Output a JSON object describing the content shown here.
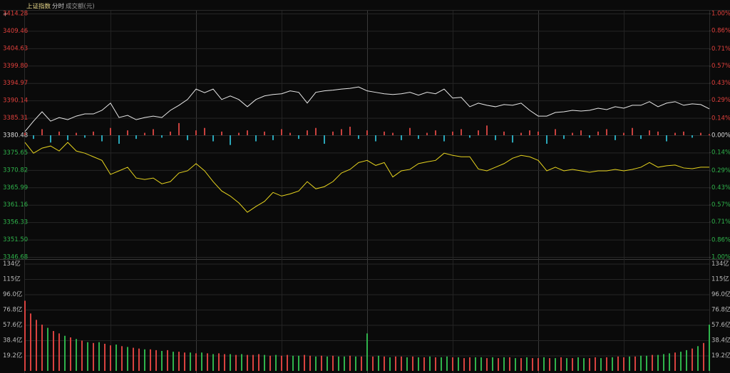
{
  "chart_data": [
    {
      "type": "line",
      "title": "上证指数",
      "subtitle": "分时",
      "up_color": "#e0403c",
      "down_color": "#2fb34b",
      "flat_color": "#dddddd",
      "ylim": [
        3346.68,
        3414.28
      ],
      "yticks": [
        3414.28,
        3409.46,
        3404.63,
        {
          "value": 3399.8,
          "label": "3399.80"
        },
        3394.97,
        3390.14,
        3385.31,
        3380.48,
        3375.65,
        3370.82,
        3365.99,
        3361.16,
        3356.33,
        {
          "value": 3351.5,
          "label": "3351.50"
        },
        3346.68
      ],
      "y2lim": [
        -1,
        1
      ],
      "y2ticks": [
        {
          "value": 1,
          "label": "1.00%"
        },
        {
          "value": 0.86,
          "label": "0.86%"
        },
        {
          "value": 0.71,
          "label": "0.71%"
        },
        {
          "value": 0.57,
          "label": "0.57%"
        },
        {
          "value": 0.43,
          "label": "0.43%"
        },
        {
          "value": 0.29,
          "label": "0.29%"
        },
        {
          "value": 0.14,
          "label": "0.14%"
        },
        {
          "value": 0,
          "label": "0.00%"
        },
        {
          "value": -0.14,
          "label": "0.14%"
        },
        {
          "value": -0.29,
          "label": "0.29%"
        },
        {
          "value": -0.43,
          "label": "0.43%"
        },
        {
          "value": -0.57,
          "label": "0.57%"
        },
        {
          "value": -0.71,
          "label": "0.71%"
        },
        {
          "value": -0.86,
          "label": "0.86%"
        },
        {
          "value": -1,
          "label": "1.00%"
        }
      ],
      "grid": true,
      "series": [
        {
          "type": "line",
          "color": "#e8e8e8",
          "values": [
            3381.5,
            3384.4,
            3387.0,
            3384.4,
            3385.4,
            3384.8,
            3385.8,
            3386.4,
            3386.4,
            3387.4,
            3389.4,
            3385.4,
            3386.0,
            3384.8,
            3385.4,
            3385.8,
            3385.4,
            3387.4,
            3388.8,
            3390.4,
            3393.3,
            3392.3,
            3393.3,
            3390.4,
            3391.4,
            3390.4,
            3388.4,
            3390.4,
            3391.4,
            3391.8,
            3392.0,
            3392.8,
            3392.4,
            3389.4,
            3392.4,
            3392.8,
            3393.0,
            3393.3,
            3393.5,
            3393.9,
            3392.8,
            3392.4,
            3392.0,
            3391.8,
            3392.0,
            3392.4,
            3391.6,
            3392.4,
            3392.0,
            3393.3,
            3390.8,
            3391.0,
            3388.4,
            3389.4,
            3388.8,
            3388.4,
            3389.0,
            3388.8,
            3389.4,
            3387.4,
            3385.8,
            3385.8,
            3386.8,
            3387.0,
            3387.4,
            3387.2,
            3387.4,
            3388.0,
            3387.6,
            3388.4,
            3388.0,
            3388.8,
            3388.8,
            3389.8,
            3388.4,
            3389.4,
            3389.8,
            3388.8,
            3389.2,
            3389.0,
            3387.8
          ]
        },
        {
          "type": "line",
          "color": "#e6d31e",
          "values": [
            3378.5,
            3375.5,
            3376.9,
            3377.5,
            3376.1,
            3378.5,
            3376.1,
            3375.5,
            3374.5,
            3373.5,
            3369.6,
            3370.6,
            3371.6,
            3368.6,
            3368.2,
            3368.6,
            3367.0,
            3367.6,
            3370.0,
            3370.6,
            3372.6,
            3370.6,
            3367.6,
            3365.0,
            3363.6,
            3361.7,
            3359.1,
            3360.7,
            3362.1,
            3364.6,
            3363.6,
            3364.2,
            3365.0,
            3367.6,
            3365.6,
            3366.2,
            3367.6,
            3370.0,
            3371.0,
            3372.9,
            3373.5,
            3372.1,
            3372.9,
            3368.9,
            3370.6,
            3371.0,
            3372.6,
            3373.1,
            3373.5,
            3375.5,
            3374.9,
            3374.5,
            3374.5,
            3371.1,
            3370.6,
            3371.6,
            3372.6,
            3374.1,
            3374.9,
            3374.5,
            3373.5,
            3370.6,
            3371.6,
            3370.6,
            3371.0,
            3370.6,
            3370.2,
            3370.6,
            3370.6,
            3371.0,
            3370.6,
            3371.0,
            3371.6,
            3372.9,
            3371.6,
            3372.0,
            3372.2,
            3371.4,
            3371.2,
            3371.6,
            3371.6
          ]
        },
        {
          "type": "bar",
          "axis": "y2",
          "up_color": "#c9413e",
          "down_color": "#2aa6b8",
          "values": [
            0.02,
            -0.03,
            0.05,
            -0.06,
            0.03,
            -0.04,
            0.02,
            -0.02,
            0.03,
            -0.05,
            0.06,
            -0.07,
            0.04,
            -0.03,
            0.02,
            0.05,
            -0.02,
            0.03,
            0.1,
            -0.04,
            0.04,
            0.06,
            -0.05,
            0.03,
            -0.08,
            0.02,
            0.04,
            -0.05,
            0.03,
            -0.04,
            0.05,
            0.02,
            -0.03,
            0.04,
            0.06,
            -0.07,
            0.03,
            0.05,
            0.07,
            -0.03,
            0.04,
            -0.05,
            0.03,
            0.02,
            -0.04,
            0.06,
            -0.03,
            0.02,
            0.04,
            -0.05,
            0.03,
            0.05,
            -0.02,
            0.04,
            0.08,
            -0.04,
            0.03,
            -0.06,
            0.02,
            0.04,
            0.03,
            -0.07,
            0.05,
            -0.03,
            0.02,
            0.04,
            -0.02,
            0.03,
            0.05,
            -0.04,
            0.02,
            0.06,
            -0.03,
            0.04,
            0.03,
            -0.05,
            0.02,
            0.03,
            -0.02,
            0.02,
            0.01
          ]
        }
      ]
    },
    {
      "type": "bar",
      "title": "成交额(元)",
      "ylim": [
        0,
        138
      ],
      "yticks": [
        {
          "value": 134.4,
          "label": "134亿"
        },
        {
          "value": 115.2,
          "label": "115亿"
        },
        {
          "value": 96,
          "label": "96.0亿"
        },
        {
          "value": 76.8,
          "label": "76.8亿"
        },
        {
          "value": 57.6,
          "label": "57.6亿"
        },
        {
          "value": 38.4,
          "label": "38.4亿"
        },
        {
          "value": 19.2,
          "label": "19.2亿"
        }
      ],
      "grid": true,
      "values": [
        88,
        72,
        64,
        58,
        54,
        50,
        47,
        44,
        42,
        40,
        38,
        36,
        35,
        36,
        34,
        32,
        33,
        31,
        30,
        29,
        28,
        27,
        27,
        26,
        25,
        26,
        24,
        24,
        23,
        23,
        22,
        23,
        22,
        21,
        22,
        21,
        21,
        20,
        21,
        20,
        20,
        21,
        20,
        19,
        20,
        19,
        20,
        19,
        19,
        20,
        19,
        18,
        19,
        18,
        19,
        18,
        18,
        19,
        18,
        18,
        47,
        18,
        19,
        18,
        17,
        18,
        18,
        17,
        18,
        17,
        17,
        18,
        17,
        17,
        18,
        17,
        17,
        16,
        17,
        17,
        17,
        16,
        17,
        16,
        17,
        17,
        16,
        16,
        17,
        16,
        16,
        17,
        16,
        16,
        17,
        16,
        16,
        17,
        16,
        16,
        17,
        16,
        17,
        17,
        18,
        17,
        18,
        18,
        19,
        19,
        20,
        20,
        21,
        22,
        23,
        24,
        26,
        28,
        31,
        35,
        58
      ],
      "colors": [
        "#d9423f",
        "#d9423f",
        "#d9423f",
        "#d9423f",
        "#2fb34b",
        "#d9423f",
        "#d9423f",
        "#2fb34b",
        "#d9423f",
        "#2fb34b",
        "#d9423f",
        "#2fb34b",
        "#d9423f",
        "#2fb34b",
        "#d9423f",
        "#d9423f",
        "#2fb34b",
        "#d9423f",
        "#2fb34b",
        "#d9423f",
        "#d9423f",
        "#2fb34b",
        "#d9423f",
        "#d9423f",
        "#2fb34b",
        "#d9423f",
        "#2fb34b",
        "#d9423f",
        "#d9423f",
        "#2fb34b",
        "#d9423f",
        "#2fb34b",
        "#d9423f",
        "#2fb34b",
        "#d9423f",
        "#d9423f",
        "#2fb34b",
        "#d9423f",
        "#2fb34b",
        "#d9423f",
        "#d9423f",
        "#d9423f",
        "#2fb34b",
        "#d9423f",
        "#2fb34b",
        "#d9423f",
        "#d9423f",
        "#2fb34b",
        "#2fb34b",
        "#d9423f",
        "#d9423f",
        "#2fb34b",
        "#d9423f",
        "#2fb34b",
        "#d9423f",
        "#2fb34b",
        "#2fb34b",
        "#d9423f",
        "#2fb34b",
        "#d9423f",
        "#2fb34b",
        "#d9423f",
        "#2fb34b",
        "#d9423f",
        "#2fb34b",
        "#d9423f",
        "#d9423f",
        "#2fb34b",
        "#d9423f",
        "#2fb34b",
        "#d9423f",
        "#2fb34b",
        "#d9423f",
        "#2fb34b",
        "#2fb34b",
        "#d9423f",
        "#2fb34b",
        "#d9423f",
        "#d9423f",
        "#2fb34b",
        "#2fb34b",
        "#d9423f",
        "#2fb34b",
        "#d9423f",
        "#2fb34b",
        "#d9423f",
        "#2fb34b",
        "#d9423f",
        "#2fb34b",
        "#d9423f",
        "#d9423f",
        "#2fb34b",
        "#d9423f",
        "#2fb34b",
        "#d9423f",
        "#2fb34b",
        "#d9423f",
        "#2fb34b",
        "#2fb34b",
        "#d9423f",
        "#d9423f",
        "#2fb34b",
        "#d9423f",
        "#2fb34b",
        "#d9423f",
        "#d9423f",
        "#2fb34b",
        "#d9423f",
        "#2fb34b",
        "#2fb34b",
        "#d9423f",
        "#2fb34b",
        "#2fb34b",
        "#2fb34b",
        "#d9423f",
        "#2fb34b",
        "#2fb34b",
        "#d9423f",
        "#2fb34b",
        "#d9423f",
        "#2fb34b"
      ]
    }
  ]
}
